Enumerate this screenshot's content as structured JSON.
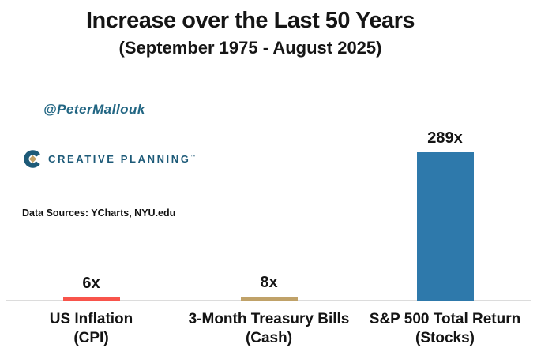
{
  "header": {
    "title": "Increase over the Last 50 Years",
    "subtitle": "(September 1975 - August 2025)"
  },
  "annotations": {
    "twitter_handle": "@PeterMallouk",
    "logo_text": "CREATIVE PLANNING",
    "logo_trademark": "™",
    "data_sources": "Data Sources: YCharts, NYU.edu"
  },
  "chart_data": {
    "type": "bar",
    "title": "Increase over the Last 50 Years",
    "subtitle": "(September 1975 - August 2025)",
    "categories": [
      "US Inflation (CPI)",
      "3-Month Treasury Bills (Cash)",
      "S&P 500 Total Return (Stocks)"
    ],
    "categories_line1": [
      "US Inflation",
      "3-Month Treasury Bills",
      "S&P 500 Total Return"
    ],
    "categories_line2": [
      "(CPI)",
      "(Cash)",
      "(Stocks)"
    ],
    "values": [
      6,
      8,
      289
    ],
    "value_labels": [
      "6x",
      "8x",
      "289x"
    ],
    "colors": [
      "#f8544b",
      "#c0a269",
      "#2e79ab"
    ],
    "xlabel": "",
    "ylabel": "",
    "ylim": [
      0,
      300
    ],
    "grid": false,
    "legend": null
  },
  "colors": {
    "brand_teal": "#1d5a78",
    "handle_teal": "#226683",
    "logo_gold": "#c2a165",
    "axis_gray": "#dcdcdc",
    "bar_red": "#f8544b",
    "bar_tan": "#c0a269",
    "bar_blue": "#2e79ab"
  }
}
